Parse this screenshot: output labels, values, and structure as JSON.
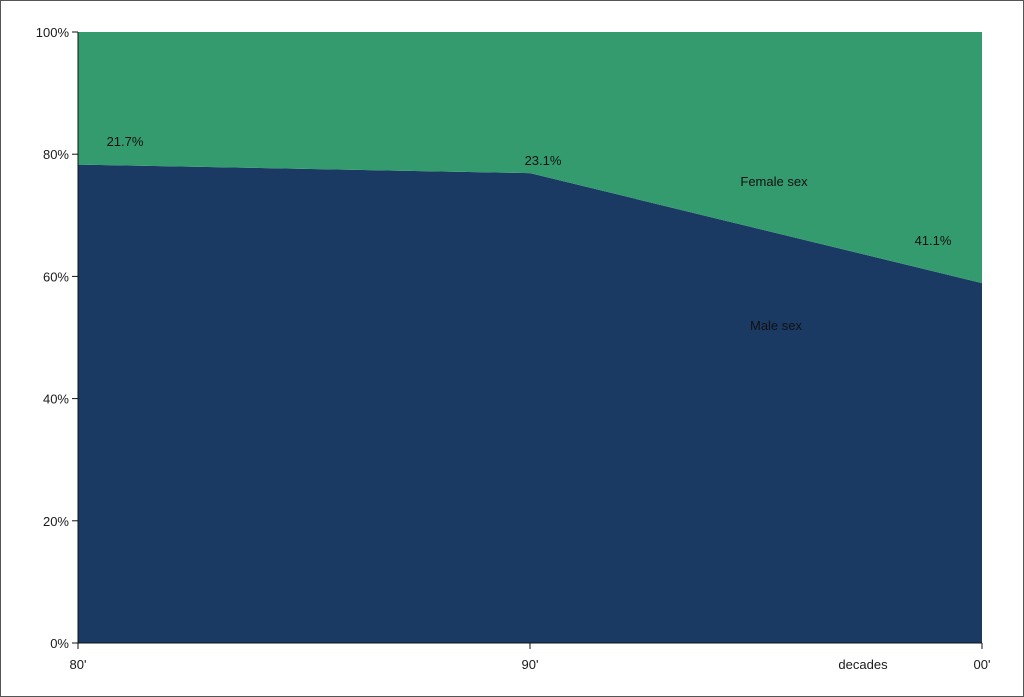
{
  "chart_data": {
    "type": "area",
    "stacked": true,
    "percent": true,
    "x": [
      "80'",
      "90'",
      "00'"
    ],
    "xlabel": "decades",
    "ylabel": "",
    "ylim": [
      0,
      100
    ],
    "y_ticks": [
      "0%",
      "20%",
      "40%",
      "60%",
      "80%",
      "100%"
    ],
    "y_tick_values": [
      0,
      20,
      40,
      60,
      80,
      100
    ],
    "grid": false,
    "series": [
      {
        "name": "Male sex",
        "values": [
          78.3,
          76.9,
          58.9
        ],
        "color": "#1b3a63"
      },
      {
        "name": "Female sex",
        "values": [
          21.7,
          23.1,
          41.1
        ],
        "color": "#339b6e"
      }
    ],
    "data_labels": [
      "21.7%",
      "23.1%",
      "41.1%"
    ]
  }
}
